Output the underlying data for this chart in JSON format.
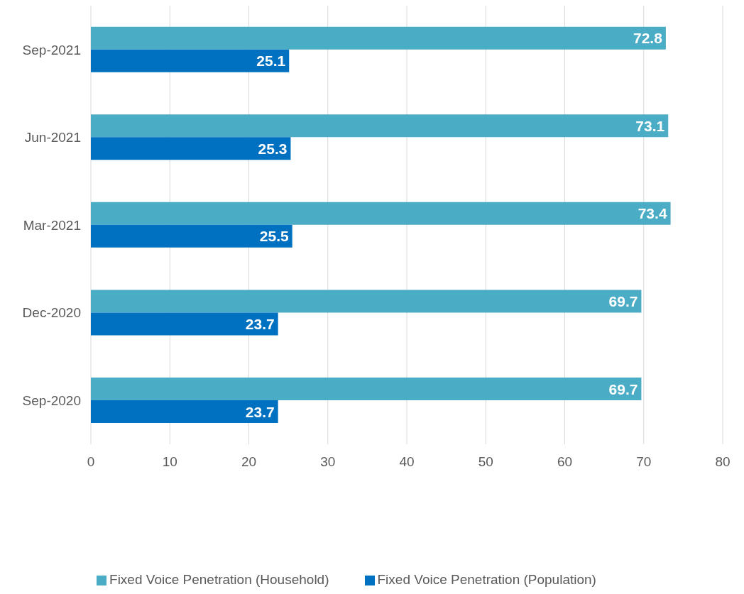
{
  "chart_data": {
    "type": "bar",
    "orientation": "horizontal",
    "categories": [
      "Sep-2021",
      "Jun-2021",
      "Mar-2021",
      "Dec-2020",
      "Sep-2020"
    ],
    "series": [
      {
        "name": "Fixed Voice Penetration (Household)",
        "color": "#4bacc6",
        "values": [
          72.8,
          73.1,
          73.4,
          69.7,
          69.7
        ]
      },
      {
        "name": "Fixed Voice Penetration (Population)",
        "color": "#0070c0",
        "values": [
          25.1,
          25.3,
          25.5,
          23.7,
          23.7
        ]
      }
    ],
    "xlim": [
      0,
      80
    ],
    "xticks": [
      0,
      10,
      20,
      30,
      40,
      50,
      60,
      70,
      80
    ],
    "grid": "x",
    "legend": "bottom",
    "data_labels": true
  }
}
